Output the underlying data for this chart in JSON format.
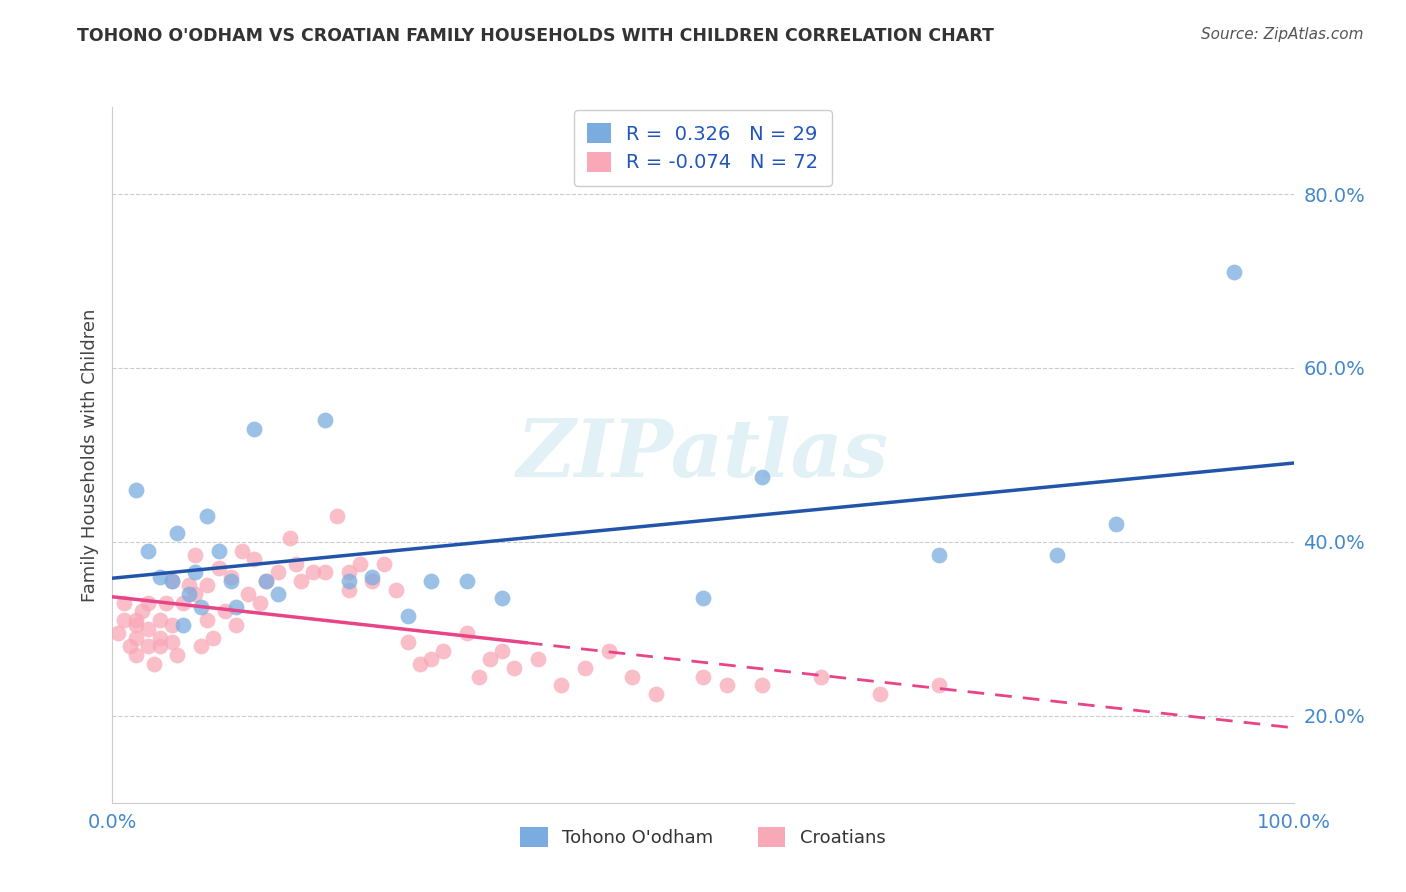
{
  "title": "TOHONO O'ODHAM VS CROATIAN FAMILY HOUSEHOLDS WITH CHILDREN CORRELATION CHART",
  "source": "Source: ZipAtlas.com",
  "ylabel": "Family Households with Children",
  "xlim": [
    0,
    1.0
  ],
  "ylim": [
    0.1,
    0.9
  ],
  "ytick_vals": [
    0.2,
    0.4,
    0.6,
    0.8
  ],
  "ytick_labels": [
    "20.0%",
    "40.0%",
    "60.0%",
    "80.0%"
  ],
  "xtick_vals": [
    0.0,
    1.0
  ],
  "xtick_labels": [
    "0.0%",
    "100.0%"
  ],
  "bg_color": "#ffffff",
  "watermark": "ZIPatlas",
  "blue_color": "#7aace0",
  "pink_color": "#f9a8b8",
  "blue_line_color": "#2255aa",
  "pink_line_color": "#e84488",
  "tick_color": "#4488cc",
  "legend_label1": "Tohono O'odham",
  "legend_label2": "Croatians",
  "tohono_x": [
    0.02,
    0.03,
    0.04,
    0.05,
    0.055,
    0.06,
    0.065,
    0.07,
    0.075,
    0.08,
    0.09,
    0.1,
    0.105,
    0.12,
    0.13,
    0.14,
    0.18,
    0.2,
    0.22,
    0.25,
    0.27,
    0.3,
    0.33,
    0.5,
    0.55,
    0.7,
    0.8,
    0.85,
    0.95
  ],
  "tohono_y": [
    0.46,
    0.39,
    0.36,
    0.355,
    0.41,
    0.305,
    0.34,
    0.365,
    0.325,
    0.43,
    0.39,
    0.355,
    0.325,
    0.53,
    0.355,
    0.34,
    0.54,
    0.355,
    0.36,
    0.315,
    0.355,
    0.355,
    0.335,
    0.335,
    0.475,
    0.385,
    0.385,
    0.42,
    0.71
  ],
  "croatian_x": [
    0.005,
    0.01,
    0.01,
    0.015,
    0.02,
    0.02,
    0.02,
    0.02,
    0.025,
    0.03,
    0.03,
    0.03,
    0.035,
    0.04,
    0.04,
    0.04,
    0.045,
    0.05,
    0.05,
    0.05,
    0.055,
    0.06,
    0.065,
    0.07,
    0.07,
    0.075,
    0.08,
    0.08,
    0.085,
    0.09,
    0.095,
    0.1,
    0.105,
    0.11,
    0.115,
    0.12,
    0.125,
    0.13,
    0.14,
    0.15,
    0.155,
    0.16,
    0.17,
    0.18,
    0.19,
    0.2,
    0.2,
    0.21,
    0.22,
    0.23,
    0.24,
    0.25,
    0.26,
    0.27,
    0.28,
    0.3,
    0.31,
    0.32,
    0.33,
    0.34,
    0.36,
    0.38,
    0.4,
    0.42,
    0.44,
    0.46,
    0.5,
    0.52,
    0.55,
    0.6,
    0.65,
    0.7
  ],
  "croatian_y": [
    0.295,
    0.31,
    0.33,
    0.28,
    0.305,
    0.29,
    0.31,
    0.27,
    0.32,
    0.33,
    0.28,
    0.3,
    0.26,
    0.29,
    0.31,
    0.28,
    0.33,
    0.355,
    0.305,
    0.285,
    0.27,
    0.33,
    0.35,
    0.385,
    0.34,
    0.28,
    0.35,
    0.31,
    0.29,
    0.37,
    0.32,
    0.36,
    0.305,
    0.39,
    0.34,
    0.38,
    0.33,
    0.355,
    0.365,
    0.405,
    0.375,
    0.355,
    0.365,
    0.365,
    0.43,
    0.365,
    0.345,
    0.375,
    0.355,
    0.375,
    0.345,
    0.285,
    0.26,
    0.265,
    0.275,
    0.295,
    0.245,
    0.265,
    0.275,
    0.255,
    0.265,
    0.235,
    0.255,
    0.275,
    0.245,
    0.225,
    0.245,
    0.235,
    0.235,
    0.245,
    0.225,
    0.235
  ],
  "marker_size": 130
}
